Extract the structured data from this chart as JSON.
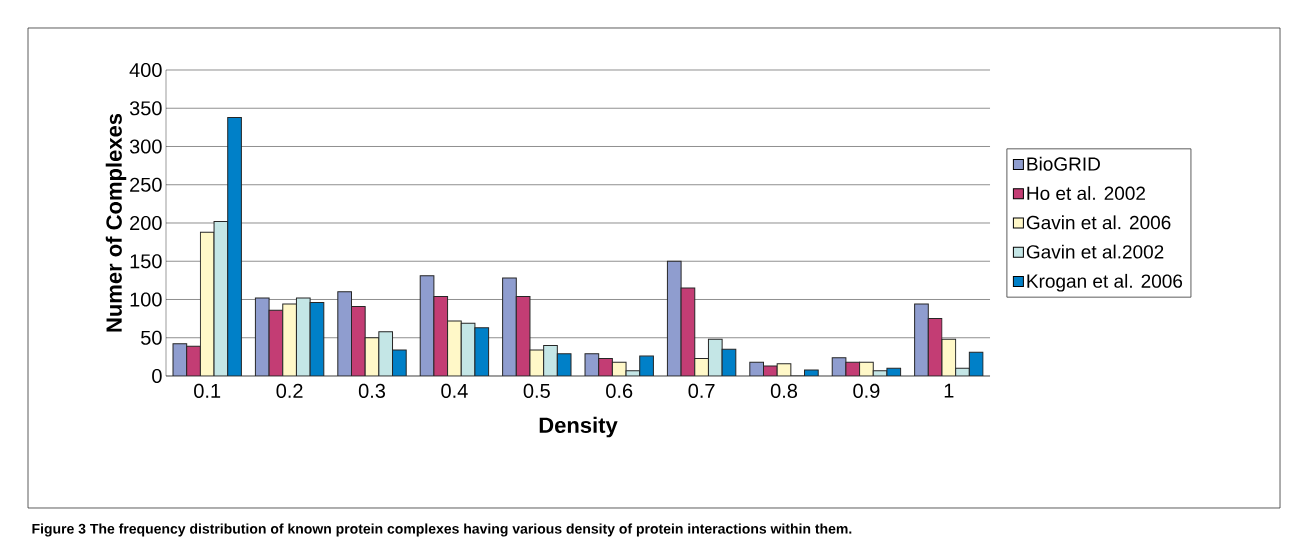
{
  "chart_data": {
    "type": "bar",
    "xlabel": "Density",
    "ylabel": "Numer of Complexes",
    "annotations": [
      "Figure 3 The frequency distribution of known protein complexes having various density of protein interactions within them."
    ],
    "categories": [
      "0.1",
      "0.2",
      "0.3",
      "0.4",
      "0.5",
      "0.6",
      "0.7",
      "0.8",
      "0.9",
      "1"
    ],
    "series": [
      {
        "name": "BioGRID",
        "color": "#8f9dcf",
        "values": [
          42,
          102,
          110,
          131,
          128,
          29,
          150,
          18,
          24,
          94
        ]
      },
      {
        "name": "Ho et al. 2002",
        "color": "#c33d74",
        "values": [
          39,
          86,
          91,
          104,
          104,
          23,
          115,
          13,
          18,
          75
        ]
      },
      {
        "name": "Gavin et al. 2006",
        "color": "#fff8c8",
        "values": [
          188,
          94,
          50,
          72,
          34,
          18,
          23,
          16,
          18,
          48
        ]
      },
      {
        "name": "Gavin et al.2002",
        "color": "#c4e6e6",
        "values": [
          202,
          102,
          58,
          69,
          40,
          7,
          48,
          0,
          7,
          10
        ]
      },
      {
        "name": "Krogan et al. 2006",
        "color": "#0080c8",
        "values": [
          338,
          96,
          34,
          63,
          29,
          26,
          35,
          8,
          10,
          31
        ]
      }
    ],
    "ylim": [
      0,
      400
    ],
    "yticks": [
      0,
      50,
      100,
      150,
      200,
      250,
      300,
      350,
      400
    ],
    "grid": "y",
    "legend": "right"
  }
}
